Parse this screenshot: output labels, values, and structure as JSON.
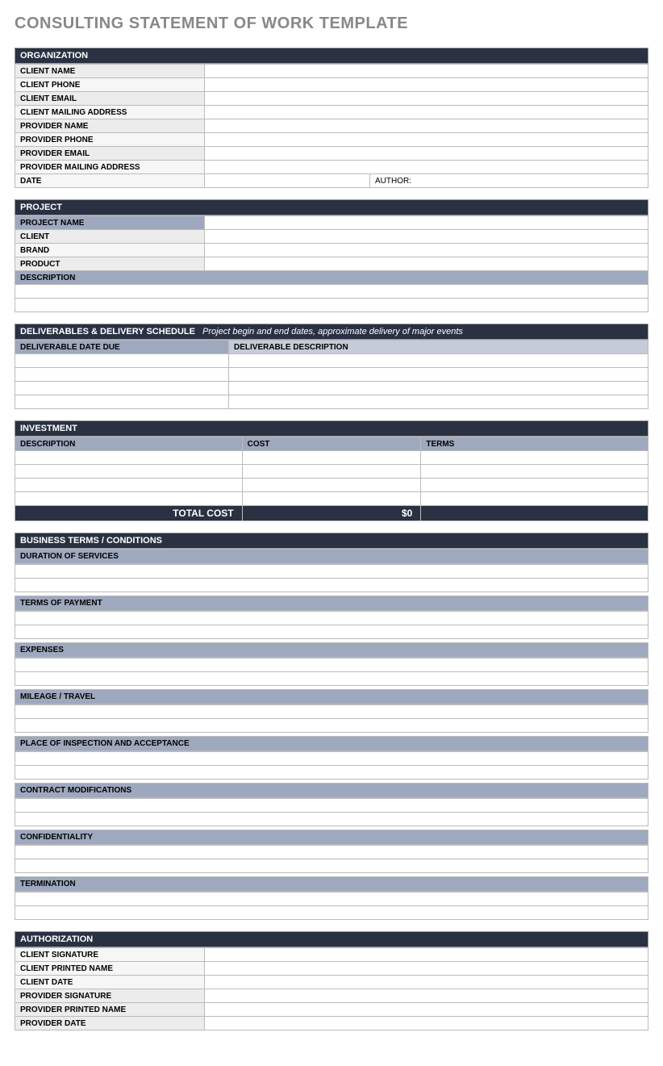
{
  "title": "CONSULTING STATEMENT OF WORK TEMPLATE",
  "colors": {
    "header_bg": "#293142",
    "header_text": "#ffffff",
    "title_text": "#888888",
    "cell_blue": "#9ea8be",
    "cell_bluelight": "#c5cbd8",
    "cell_light": "#ececec",
    "cell_lighter": "#f6f6f6",
    "border": "#bbbbbb",
    "page_bg": "#ffffff"
  },
  "organization": {
    "header": "ORGANIZATION",
    "rows": [
      {
        "label": "CLIENT NAME",
        "shade": "light"
      },
      {
        "label": "CLIENT  PHONE",
        "shade": "lighter"
      },
      {
        "label": "CLIENT EMAIL",
        "shade": "light"
      },
      {
        "label": "CLIENT MAILING ADDRESS",
        "shade": "lighter"
      },
      {
        "label": "PROVIDER NAME",
        "shade": "light"
      },
      {
        "label": "PROVIDER PHONE",
        "shade": "lighter"
      },
      {
        "label": "PROVIDER EMAIL",
        "shade": "light"
      },
      {
        "label": "PROVIDER MAILING ADDRESS",
        "shade": "lighter"
      }
    ],
    "date_label": "DATE",
    "author_label": "AUTHOR:"
  },
  "project": {
    "header": "PROJECT",
    "rows": [
      {
        "label": "PROJECT NAME",
        "shade": "blue"
      },
      {
        "label": "CLIENT",
        "shade": "light"
      },
      {
        "label": "BRAND",
        "shade": "lighter"
      },
      {
        "label": "PRODUCT",
        "shade": "light"
      }
    ],
    "description_label": "DESCRIPTION"
  },
  "deliverables": {
    "header": "DELIVERABLES & DELIVERY SCHEDULE",
    "subtitle": "Project begin and end dates, approximate delivery of major events",
    "col1": "DELIVERABLE DATE DUE",
    "col2": "DELIVERABLE DESCRIPTION",
    "blank_rows": 4
  },
  "investment": {
    "header": "INVESTMENT",
    "col1": "DESCRIPTION",
    "col2": "COST",
    "col3": "TERMS",
    "blank_rows": 4,
    "total_label": "TOTAL COST",
    "total_value": "$0"
  },
  "terms": {
    "header": "BUSINESS TERMS / CONDITIONS",
    "items": [
      "DURATION OF SERVICES",
      "TERMS OF PAYMENT",
      "EXPENSES",
      "MILEAGE / TRAVEL",
      "PLACE OF INSPECTION AND ACCEPTANCE",
      "CONTRACT MODIFICATIONS",
      "CONFIDENTIALITY",
      "TERMINATION"
    ]
  },
  "authorization": {
    "header": "AUTHORIZATION",
    "rows": [
      {
        "label": "CLIENT SIGNATURE",
        "shade": "lighter"
      },
      {
        "label": "CLIENT PRINTED NAME",
        "shade": "lighter"
      },
      {
        "label": "CLIENT DATE",
        "shade": "lighter"
      },
      {
        "label": "PROVIDER SIGNATURE",
        "shade": "light"
      },
      {
        "label": "PROVIDER PRINTED NAME",
        "shade": "light"
      },
      {
        "label": "PROVIDER DATE",
        "shade": "light"
      }
    ]
  }
}
